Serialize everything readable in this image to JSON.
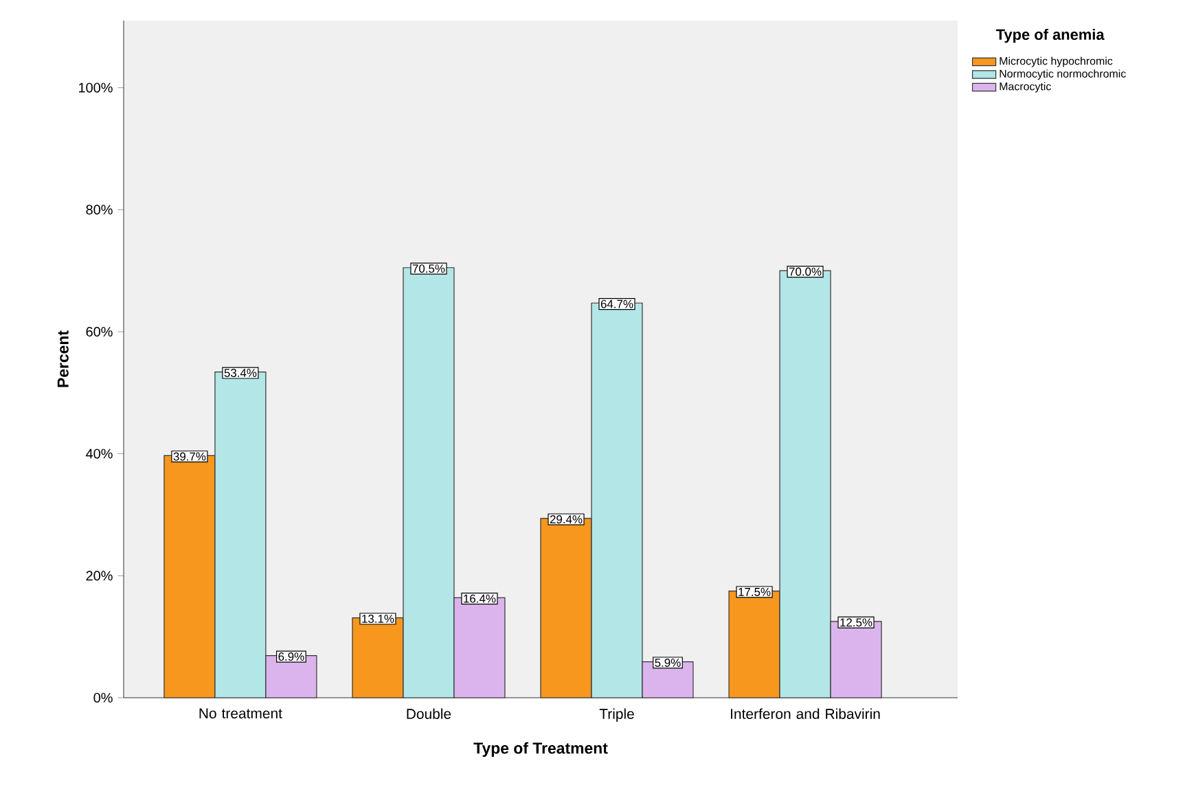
{
  "chart_data": {
    "type": "bar",
    "xlabel": "Type of Treatment",
    "ylabel": "Percent",
    "legend_title": "Type of anemia",
    "categories": [
      "No treatment",
      "Double",
      "Triple",
      "Interferon and Ribavirin"
    ],
    "series": [
      {
        "name": "Microcytic hypochromic",
        "color": "#f7971e",
        "values": [
          39.7,
          13.1,
          29.4,
          17.5
        ],
        "value_labels": [
          "39.7%",
          "13.1%",
          "29.4%",
          "17.5%"
        ]
      },
      {
        "name": "Normocytic normochromic",
        "color": "#b3e6e6",
        "values": [
          53.4,
          70.5,
          64.7,
          70.0
        ],
        "value_labels": [
          "53.4%",
          "70.5%",
          "64.7%",
          "70.0%"
        ]
      },
      {
        "name": "Macrocytic",
        "color": "#dbb4ee",
        "values": [
          6.9,
          16.4,
          5.9,
          12.5
        ],
        "value_labels": [
          "6.9%",
          "16.4%",
          "5.9%",
          "12.5%"
        ]
      }
    ],
    "ylim": [
      0,
      111
    ],
    "yticks": [
      {
        "value": 0,
        "label": "0%"
      },
      {
        "value": 20,
        "label": "20%"
      },
      {
        "value": 40,
        "label": "40%"
      },
      {
        "value": 60,
        "label": "60%"
      },
      {
        "value": 80,
        "label": "80%"
      },
      {
        "value": 100,
        "label": "100%"
      }
    ],
    "legend": "top right",
    "grid": false
  }
}
